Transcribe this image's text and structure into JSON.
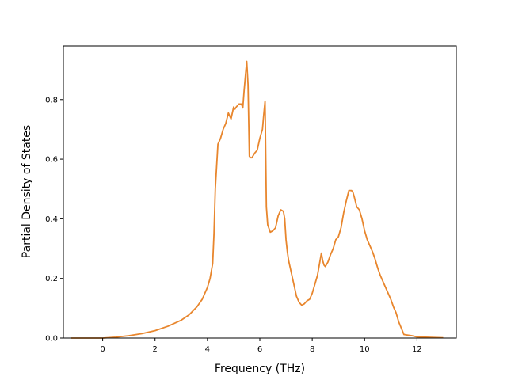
{
  "chart_data": {
    "type": "line",
    "title": "",
    "xlabel": "Frequency (THz)",
    "ylabel": "Partial Density of States",
    "xlim": [
      -1.5,
      13.5
    ],
    "ylim": [
      0.0,
      0.98
    ],
    "xticks": [
      0,
      2,
      4,
      6,
      8,
      10,
      12
    ],
    "xtick_labels": [
      "0",
      "2",
      "4",
      "6",
      "8",
      "10",
      "12"
    ],
    "yticks": [
      0.0,
      0.2,
      0.4,
      0.6,
      0.8
    ],
    "ytick_labels": [
      "0.0",
      "0.2",
      "0.4",
      "0.6",
      "0.8"
    ],
    "grid": false,
    "series": [
      {
        "name": "",
        "color": "#e8862d",
        "x": [
          -1.2,
          -0.5,
          0.0,
          0.5,
          1.0,
          1.5,
          2.0,
          2.5,
          3.0,
          3.3,
          3.6,
          3.8,
          4.0,
          4.1,
          4.2,
          4.25,
          4.3,
          4.4,
          4.5,
          4.6,
          4.7,
          4.8,
          4.85,
          4.9,
          5.0,
          5.05,
          5.1,
          5.2,
          5.3,
          5.35,
          5.4,
          5.45,
          5.5,
          5.55,
          5.6,
          5.65,
          5.7,
          5.8,
          5.9,
          6.0,
          6.1,
          6.15,
          6.2,
          6.25,
          6.3,
          6.4,
          6.5,
          6.6,
          6.7,
          6.8,
          6.9,
          6.95,
          7.0,
          7.05,
          7.1,
          7.2,
          7.3,
          7.4,
          7.5,
          7.6,
          7.7,
          7.8,
          7.9,
          8.0,
          8.1,
          8.2,
          8.3,
          8.35,
          8.4,
          8.45,
          8.5,
          8.6,
          8.7,
          8.8,
          8.9,
          9.0,
          9.1,
          9.2,
          9.3,
          9.4,
          9.5,
          9.55,
          9.6,
          9.7,
          9.8,
          9.9,
          10.0,
          10.1,
          10.2,
          10.3,
          10.4,
          10.5,
          10.6,
          10.7,
          10.8,
          10.9,
          11.0,
          11.1,
          11.15,
          11.2,
          11.3,
          11.5,
          11.8,
          12.0,
          13.0
        ],
        "values": [
          0.0,
          0.0,
          0.0,
          0.003,
          0.008,
          0.015,
          0.025,
          0.04,
          0.06,
          0.078,
          0.105,
          0.13,
          0.17,
          0.2,
          0.25,
          0.35,
          0.5,
          0.65,
          0.67,
          0.7,
          0.72,
          0.755,
          0.745,
          0.735,
          0.775,
          0.768,
          0.775,
          0.785,
          0.785,
          0.772,
          0.83,
          0.88,
          0.928,
          0.85,
          0.61,
          0.605,
          0.605,
          0.62,
          0.63,
          0.67,
          0.7,
          0.75,
          0.795,
          0.44,
          0.38,
          0.355,
          0.36,
          0.37,
          0.41,
          0.43,
          0.425,
          0.4,
          0.33,
          0.29,
          0.26,
          0.22,
          0.18,
          0.14,
          0.12,
          0.11,
          0.115,
          0.125,
          0.13,
          0.15,
          0.18,
          0.21,
          0.26,
          0.285,
          0.26,
          0.245,
          0.24,
          0.255,
          0.28,
          0.3,
          0.33,
          0.34,
          0.37,
          0.42,
          0.46,
          0.495,
          0.495,
          0.49,
          0.475,
          0.44,
          0.43,
          0.4,
          0.36,
          0.33,
          0.31,
          0.29,
          0.265,
          0.235,
          0.21,
          0.19,
          0.17,
          0.15,
          0.13,
          0.105,
          0.095,
          0.085,
          0.055,
          0.012,
          0.008,
          0.004,
          0.001
        ]
      }
    ]
  }
}
